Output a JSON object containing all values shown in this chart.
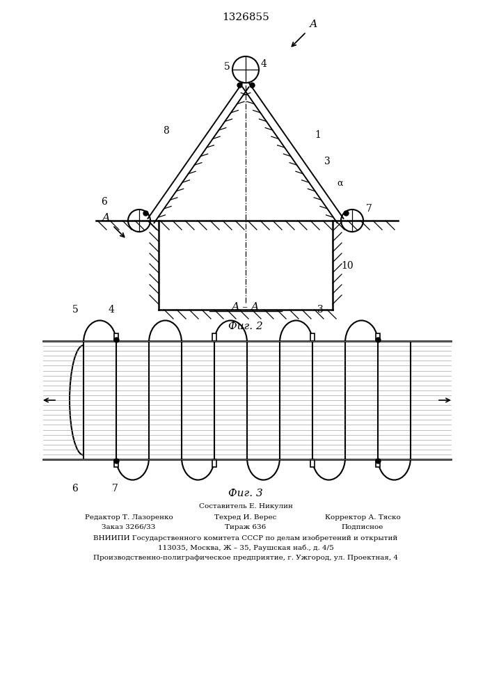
{
  "patent_number": "1326855",
  "fig2_title": "Фиг. 2",
  "fig3_title": "Фиг. 3",
  "section_label": "А – А",
  "bg_color": "#ffffff",
  "line_color": "#000000",
  "footer_lines": [
    "Составитель Е. Никулин",
    "Редактор Т. Лазоренко",
    "Техред И. Верес",
    "Корректор А. Тяско",
    "Заказ 3266/33",
    "Тираж 636",
    "Подписное",
    "ВНИИПИ Государственного комитета СССР по делам изобретений и открытий",
    "113035, Москва, Ж – 35, Раушская наб., д. 4/5",
    "Производственно-полиграфическое предприятие, г. Ужгород, ул. Проектная, 4"
  ]
}
